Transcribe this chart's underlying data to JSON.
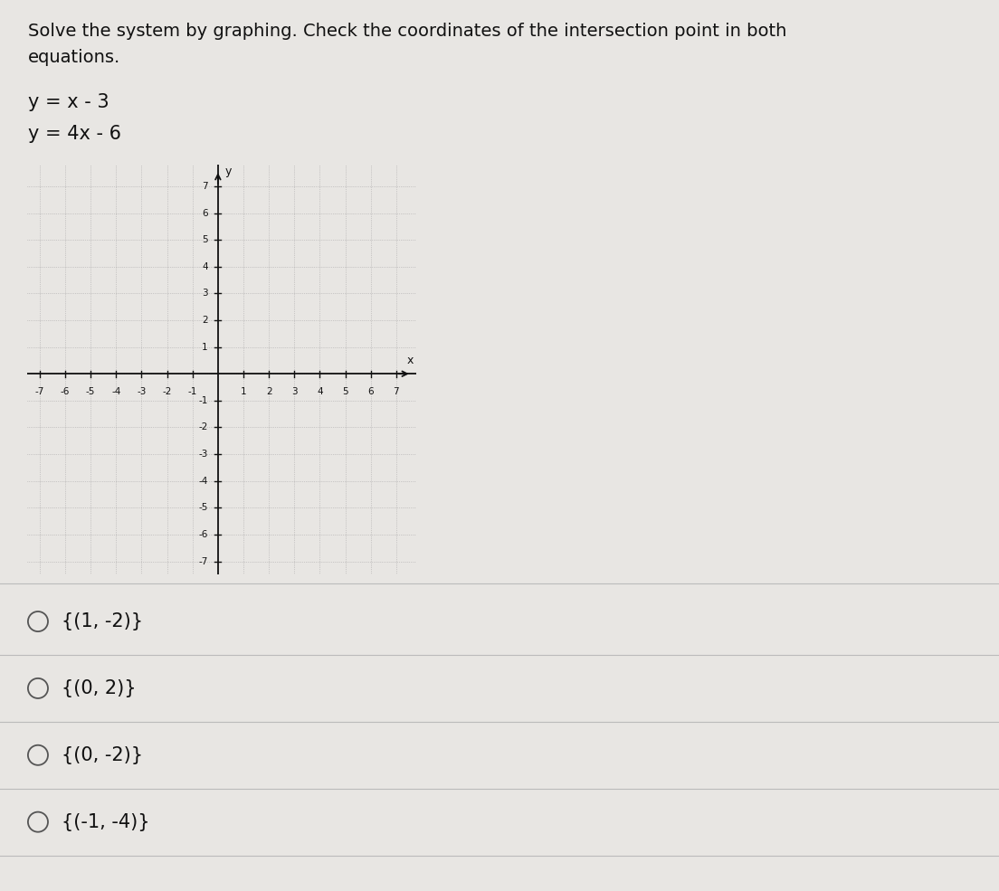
{
  "title_line1": "Solve the system by graphing. Check the coordinates of the intersection point in both",
  "title_line2": "equations.",
  "eq1": "y = x - 3",
  "eq2": "y = 4x - 6",
  "xlim": [
    -7.5,
    7.8
  ],
  "ylim": [
    -7.5,
    7.8
  ],
  "xticks": [
    -7,
    -6,
    -5,
    -4,
    -3,
    -2,
    -1,
    1,
    2,
    3,
    4,
    5,
    6,
    7
  ],
  "yticks": [
    -7,
    -6,
    -5,
    -4,
    -3,
    -2,
    -1,
    1,
    2,
    3,
    4,
    5,
    6,
    7
  ],
  "xlabel": "x",
  "ylabel": "y",
  "grid_color": "#999999",
  "axis_color": "#111111",
  "bg_color": "#e8e6e3",
  "answer_choices": [
    "{(1, -2)}",
    "{(0, 2)}",
    "{(0, -2)}",
    "{(-1, -4)}"
  ],
  "answer_fontsize": 15,
  "title_fontsize": 14,
  "eq_fontsize": 15
}
